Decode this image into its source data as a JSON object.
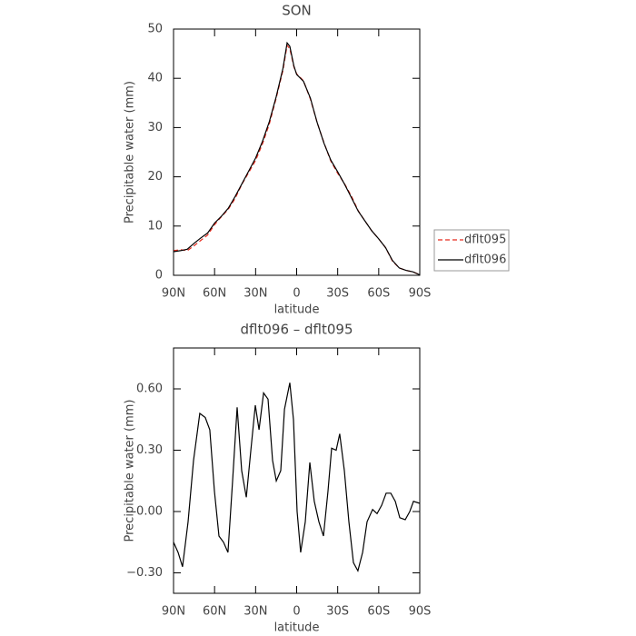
{
  "chart_data": [
    {
      "type": "line",
      "title": "SON",
      "xlabel": "latitude",
      "ylabel": "Precipitable water (mm)",
      "x": [
        90,
        85,
        80,
        75,
        70,
        65,
        60,
        55,
        50,
        45,
        40,
        35,
        30,
        25,
        20,
        15,
        10,
        7,
        5,
        2,
        0,
        -5,
        -10,
        -15,
        -20,
        -25,
        -30,
        -35,
        -40,
        -45,
        -50,
        -55,
        -60,
        -65,
        -70,
        -75,
        -80,
        -85,
        -90
      ],
      "series": [
        {
          "name": "dflt095",
          "color": "#e8291c",
          "dash": true,
          "values": [
            5.0,
            5.2,
            5.0,
            6.0,
            7.1,
            8.2,
            10.3,
            11.9,
            13.4,
            15.6,
            18.5,
            20.9,
            23.3,
            26.7,
            30.7,
            35.9,
            41.6,
            46.7,
            46.0,
            42.3,
            40.9,
            39.5,
            35.8,
            31.0,
            26.9,
            23.2,
            20.7,
            18.6,
            16.1,
            13.1,
            11.0,
            9.0,
            7.4,
            5.6,
            2.9,
            1.5,
            1.0,
            0.7,
            0.1
          ]
        },
        {
          "name": "dflt096",
          "color": "#000000",
          "dash": false,
          "values": [
            4.8,
            5.0,
            5.3,
            6.5,
            7.6,
            8.6,
            10.6,
            12.0,
            13.6,
            16.0,
            18.6,
            21.2,
            23.8,
            27.2,
            31.2,
            36.2,
            42.0,
            47.2,
            46.5,
            42.5,
            40.8,
            39.4,
            36.0,
            31.0,
            26.8,
            23.4,
            21.0,
            18.5,
            15.8,
            13.0,
            11.0,
            9.0,
            7.4,
            5.6,
            3.0,
            1.5,
            1.0,
            0.7,
            0.1
          ]
        }
      ],
      "xlim": [
        90,
        -90
      ],
      "xticks": [
        {
          "value": 90,
          "label": "90N"
        },
        {
          "value": 60,
          "label": "60N"
        },
        {
          "value": 30,
          "label": "30N"
        },
        0,
        {
          "value": -30,
          "label": "30S"
        },
        {
          "value": -60,
          "label": "60S"
        },
        {
          "value": -90,
          "label": "90S"
        }
      ],
      "ylim": [
        0,
        50
      ],
      "yticks": [
        0,
        10,
        20,
        30,
        40,
        50
      ],
      "legend": "right"
    },
    {
      "type": "line",
      "title": "dflt096 – dflt095",
      "xlabel": "latitude",
      "ylabel": "Precipitable water (mm)",
      "x": [
        90,
        86.7,
        83.4,
        79.4,
        75.4,
        70.8,
        66.8,
        63.5,
        60.1,
        56.8,
        53.5,
        50.2,
        46.8,
        43.5,
        40.2,
        36.8,
        33.5,
        30.2,
        27.5,
        24.2,
        20.9,
        17.6,
        14.9,
        11.6,
        8.9,
        5.0,
        2.3,
        -0.3,
        -2.9,
        -6.3,
        -9.6,
        -12.9,
        -16.3,
        -19.6,
        -22.9,
        -25.6,
        -28.9,
        -31.5,
        -34.9,
        -38.2,
        -41.5,
        -44.8,
        -48.2,
        -51.5,
        -55.5,
        -58.8,
        -62.1,
        -65.4,
        -68.8,
        -72.1,
        -75.4,
        -79.4,
        -82.7,
        -85.4,
        -90
      ],
      "series": [
        {
          "name": "dflt096 – dflt095",
          "color": "#000000",
          "dash": false,
          "values": [
            -0.15,
            -0.2,
            -0.27,
            -0.05,
            0.25,
            0.48,
            0.46,
            0.4,
            0.1,
            -0.12,
            -0.15,
            -0.2,
            0.15,
            0.51,
            0.2,
            0.07,
            0.3,
            0.52,
            0.4,
            0.58,
            0.55,
            0.25,
            0.15,
            0.2,
            0.5,
            0.63,
            0.45,
            0.0,
            -0.2,
            -0.05,
            0.24,
            0.05,
            -0.05,
            -0.12,
            0.1,
            0.31,
            0.3,
            0.38,
            0.2,
            -0.05,
            -0.25,
            -0.29,
            -0.2,
            -0.05,
            0.01,
            -0.01,
            0.03,
            0.09,
            0.09,
            0.05,
            -0.03,
            -0.04,
            0.0,
            0.05,
            0.04
          ]
        }
      ],
      "xlim": [
        90,
        -90
      ],
      "xticks": [
        {
          "value": 90,
          "label": "90N"
        },
        {
          "value": 60,
          "label": "60N"
        },
        {
          "value": 30,
          "label": "30N"
        },
        0,
        {
          "value": -30,
          "label": "30S"
        },
        {
          "value": -60,
          "label": "60S"
        },
        {
          "value": -90,
          "label": "90S"
        }
      ],
      "ylim": [
        -0.4,
        0.8
      ],
      "yticks": [
        {
          "value": -0.3,
          "label": "−0.30"
        },
        {
          "value": 0,
          "label": "0.00"
        },
        {
          "value": 0.3,
          "label": "0.30"
        },
        {
          "value": 0.6,
          "label": "0.60"
        }
      ]
    }
  ]
}
